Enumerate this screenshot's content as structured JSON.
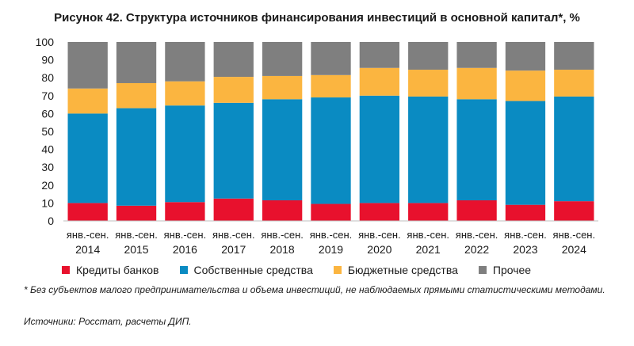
{
  "title": "Рисунок 42. Структура источников финансирования инвестиций в основной капитал*, %",
  "footnote": "* Без субъектов малого предпринимательства и объема инвестиций, не наблюдаемых прямыми статистическими методами.",
  "source": "Источники: Росстат, расчеты ДИП.",
  "chart_data": {
    "type": "bar",
    "stacked": true,
    "period_label": "янв.-сен.",
    "categories": [
      "2014",
      "2015",
      "2016",
      "2017",
      "2018",
      "2019",
      "2020",
      "2021",
      "2022",
      "2023",
      "2024"
    ],
    "ylim": [
      0,
      100
    ],
    "yticks": [
      0,
      10,
      20,
      30,
      40,
      50,
      60,
      70,
      80,
      90,
      100
    ],
    "grid": false,
    "legend_position": "bottom",
    "series": [
      {
        "name": "Кредиты банков",
        "color": "#e8112d",
        "values": [
          10,
          8.5,
          10.5,
          12.5,
          11.5,
          9.5,
          10,
          10,
          11.5,
          9,
          11
        ]
      },
      {
        "name": "Собственные средства",
        "color": "#0a8bc2",
        "values": [
          50,
          54.5,
          54,
          53.5,
          56.5,
          59.5,
          60,
          59.5,
          56.5,
          58,
          58.5
        ]
      },
      {
        "name": "Бюджетные средства",
        "color": "#fbb540",
        "values": [
          14,
          14,
          13.5,
          14.5,
          13,
          12.5,
          15.5,
          15,
          17.5,
          17,
          15
        ]
      },
      {
        "name": "Прочее",
        "color": "#7f7f7f",
        "values": [
          26,
          23,
          22,
          19.5,
          19,
          18.5,
          14.5,
          15.5,
          14.5,
          16,
          15.5
        ]
      }
    ]
  }
}
